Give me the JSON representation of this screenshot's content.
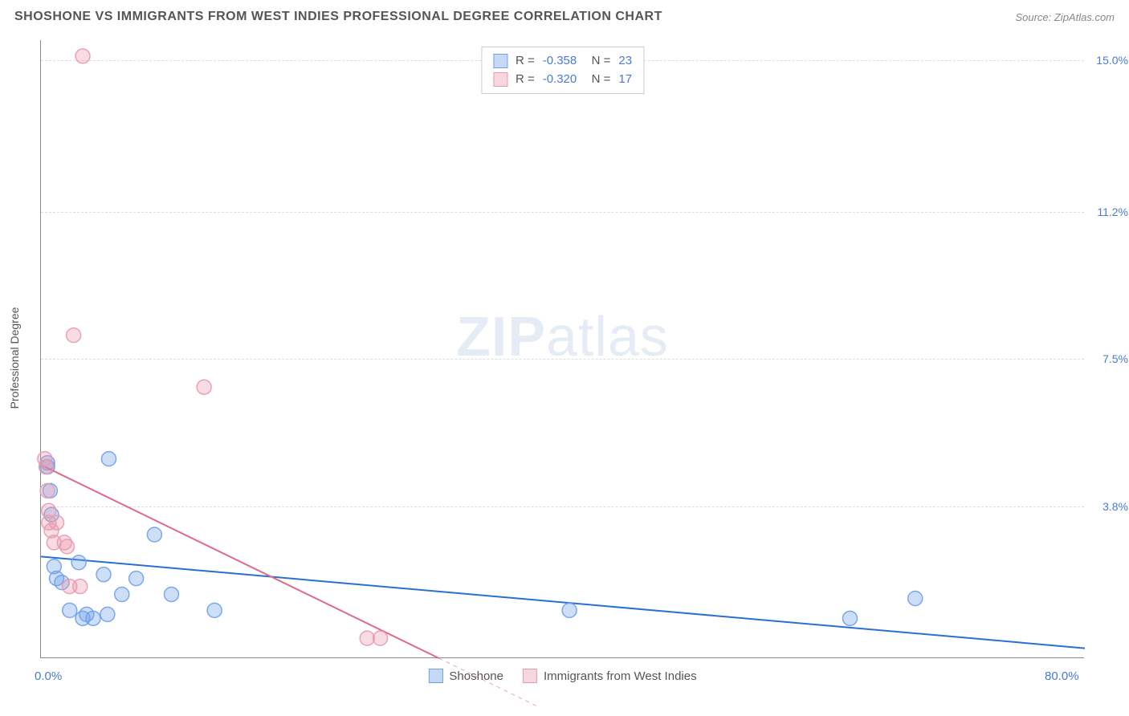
{
  "title": "SHOSHONE VS IMMIGRANTS FROM WEST INDIES PROFESSIONAL DEGREE CORRELATION CHART",
  "source": "Source: ZipAtlas.com",
  "y_axis_title": "Professional Degree",
  "watermark_zip": "ZIP",
  "watermark_atlas": "atlas",
  "chart": {
    "type": "scatter",
    "xlim": [
      0,
      80
    ],
    "ylim": [
      0,
      15.5
    ],
    "x_ticks": [
      {
        "v": 0,
        "label": "0.0%"
      },
      {
        "v": 80,
        "label": "80.0%"
      }
    ],
    "y_ticks": [
      {
        "v": 3.8,
        "label": "3.8%"
      },
      {
        "v": 7.5,
        "label": "7.5%"
      },
      {
        "v": 11.2,
        "label": "11.2%"
      },
      {
        "v": 15.0,
        "label": "15.0%"
      }
    ],
    "grid_color": "#dddddd",
    "axis_color": "#888888",
    "background_color": "#ffffff",
    "tick_label_color": "#4a7bd0",
    "marker_radius": 9,
    "marker_fill_opacity": 0.35,
    "marker_stroke_opacity": 0.9,
    "marker_stroke_width": 1.5,
    "line_width": 2,
    "series": [
      {
        "name": "Shoshone",
        "color": "#6fa0e8",
        "line_color": "#2a6fd6",
        "R": "-0.358",
        "N": "23",
        "points": [
          {
            "x": 0.5,
            "y": 4.9
          },
          {
            "x": 0.5,
            "y": 4.8
          },
          {
            "x": 0.7,
            "y": 4.2
          },
          {
            "x": 0.8,
            "y": 3.6
          },
          {
            "x": 1.0,
            "y": 2.3
          },
          {
            "x": 1.2,
            "y": 2.0
          },
          {
            "x": 1.6,
            "y": 1.9
          },
          {
            "x": 2.2,
            "y": 1.2
          },
          {
            "x": 2.9,
            "y": 2.4
          },
          {
            "x": 3.2,
            "y": 1.0
          },
          {
            "x": 3.5,
            "y": 1.1
          },
          {
            "x": 4.0,
            "y": 1.0
          },
          {
            "x": 4.8,
            "y": 2.1
          },
          {
            "x": 5.1,
            "y": 1.1
          },
          {
            "x": 5.2,
            "y": 5.0
          },
          {
            "x": 6.2,
            "y": 1.6
          },
          {
            "x": 7.3,
            "y": 2.0
          },
          {
            "x": 8.7,
            "y": 3.1
          },
          {
            "x": 10.0,
            "y": 1.6
          },
          {
            "x": 13.3,
            "y": 1.2
          },
          {
            "x": 40.5,
            "y": 1.2
          },
          {
            "x": 62.0,
            "y": 1.0
          },
          {
            "x": 67.0,
            "y": 1.5
          }
        ],
        "trend": {
          "x1": 0,
          "y1": 2.55,
          "x2": 80,
          "y2": 0.25,
          "dash": false
        },
        "trend_extrap": null
      },
      {
        "name": "Immigrants from West Indies",
        "color": "#e89aad",
        "line_color": "#e06a8a",
        "R": "-0.320",
        "N": "17",
        "points": [
          {
            "x": 0.3,
            "y": 5.0
          },
          {
            "x": 0.4,
            "y": 4.8
          },
          {
            "x": 0.5,
            "y": 4.2
          },
          {
            "x": 0.6,
            "y": 3.7
          },
          {
            "x": 0.6,
            "y": 3.4
          },
          {
            "x": 0.8,
            "y": 3.2
          },
          {
            "x": 1.0,
            "y": 2.9
          },
          {
            "x": 1.2,
            "y": 3.4
          },
          {
            "x": 1.8,
            "y": 2.9
          },
          {
            "x": 2.0,
            "y": 2.8
          },
          {
            "x": 2.2,
            "y": 1.8
          },
          {
            "x": 2.5,
            "y": 8.1
          },
          {
            "x": 3.0,
            "y": 1.8
          },
          {
            "x": 3.2,
            "y": 15.1
          },
          {
            "x": 12.5,
            "y": 6.8
          },
          {
            "x": 25.0,
            "y": 0.5
          },
          {
            "x": 26.0,
            "y": 0.5
          }
        ],
        "trend": {
          "x1": 0,
          "y1": 4.85,
          "x2": 30.5,
          "y2": 0,
          "dash": false
        },
        "trend_extrap": {
          "x1": 30.5,
          "y1": 0,
          "x2": 38,
          "y2": -1.2,
          "dash": true
        }
      }
    ]
  },
  "bottom_legend": [
    {
      "label": "Shoshone",
      "color": "#6fa0e8"
    },
    {
      "label": "Immigrants from West Indies",
      "color": "#e89aad"
    }
  ]
}
